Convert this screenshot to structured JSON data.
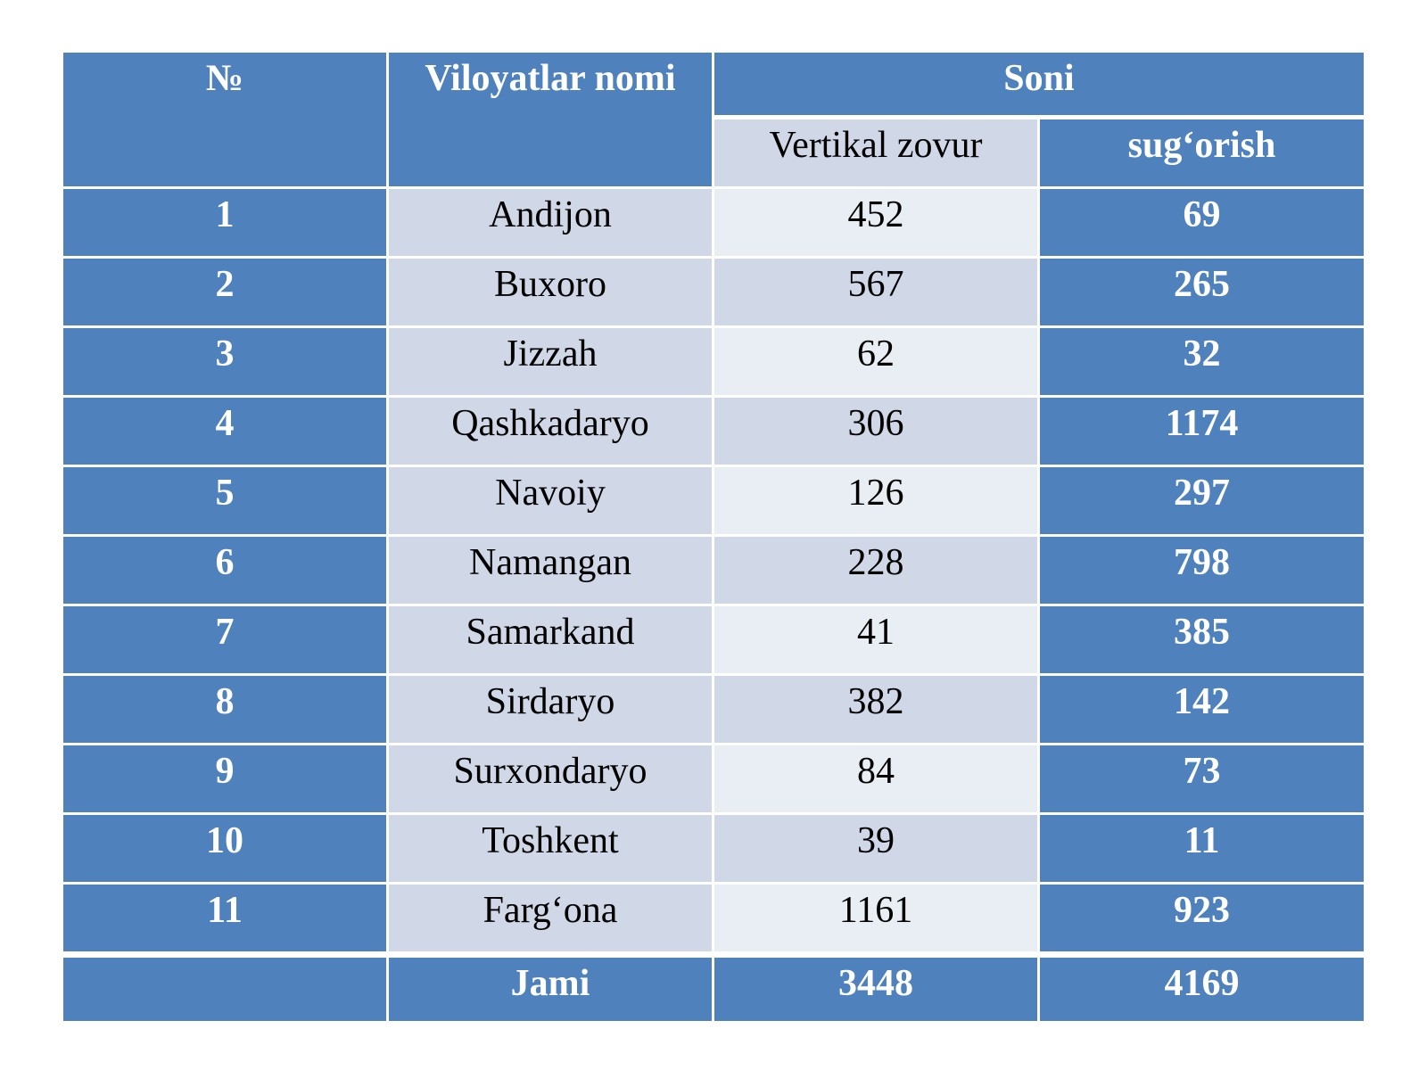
{
  "header": {
    "no": "№",
    "name": "Viloyatlar nomi",
    "soni": "Soni",
    "vertikal": "Vertikal zovur",
    "sugorish": "sug‘orish"
  },
  "rows": [
    {
      "no": "1",
      "name": "Andijon",
      "vertikal": "452",
      "sugorish": "69"
    },
    {
      "no": "2",
      "name": "Buxoro",
      "vertikal": "567",
      "sugorish": "265"
    },
    {
      "no": "3",
      "name": "Jizzah",
      "vertikal": "62",
      "sugorish": "32"
    },
    {
      "no": "4",
      "name": "Qashkadaryo",
      "vertikal": "306",
      "sugorish": "1174"
    },
    {
      "no": "5",
      "name": "Navoiy",
      "vertikal": "126",
      "sugorish": "297"
    },
    {
      "no": "6",
      "name": "Namangan",
      "vertikal": "228",
      "sugorish": "798"
    },
    {
      "no": "7",
      "name": "Samarkand",
      "vertikal": "41",
      "sugorish": "385"
    },
    {
      "no": "8",
      "name": "Sirdaryo",
      "vertikal": "382",
      "sugorish": "142"
    },
    {
      "no": "9",
      "name": "Surxondaryo",
      "vertikal": "84",
      "sugorish": "73"
    },
    {
      "no": "10",
      "name": "Toshkent",
      "vertikal": "39",
      "sugorish": "11"
    },
    {
      "no": "11",
      "name": "Farg‘ona",
      "vertikal": "1161",
      "sugorish": "923"
    }
  ],
  "total": {
    "label": "Jami",
    "vertikal": "3448",
    "sugorish": "4169"
  }
}
